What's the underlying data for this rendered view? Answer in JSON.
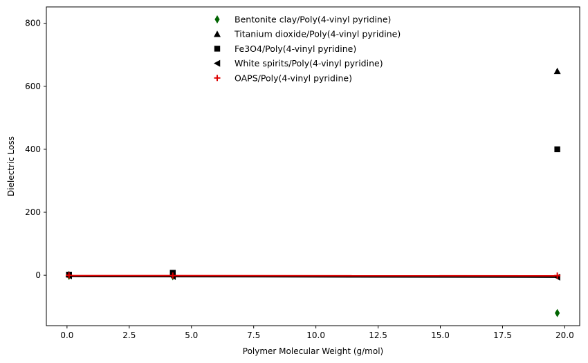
{
  "chart_data": {
    "type": "scatter",
    "title": "",
    "xlabel": "Polymer Molecular Weight (g/mol)",
    "ylabel": "Dielectric Loss",
    "xlim": [
      -0.83,
      20.6
    ],
    "ylim": [
      -160,
      852
    ],
    "x_ticks": [
      0.0,
      2.5,
      5.0,
      7.5,
      10.0,
      12.5,
      15.0,
      17.5,
      20.0
    ],
    "x_tick_labels": [
      "0.0",
      "2.5",
      "5.0",
      "7.5",
      "10.0",
      "12.5",
      "15.0",
      "17.5",
      "20.0"
    ],
    "y_ticks": [
      0,
      200,
      400,
      600,
      800
    ],
    "y_tick_labels": [
      "0",
      "200",
      "400",
      "600",
      "800"
    ],
    "grid": false,
    "legend_position": "top-center",
    "series": [
      {
        "name": "Bentonite clay/Poly(4-vinyl pyridine)",
        "marker": "diamond",
        "color": "#006400",
        "x": [
          0.08,
          4.25,
          19.7
        ],
        "y": [
          -2,
          -3,
          -120
        ]
      },
      {
        "name": "Titanium dioxide/Poly(4-vinyl pyridine)",
        "marker": "triangle-up",
        "color": "#000000",
        "x": [
          0.08,
          4.25,
          19.7
        ],
        "y": [
          3,
          5,
          648
        ]
      },
      {
        "name": "Fe3O4/Poly(4-vinyl pyridine)",
        "marker": "square",
        "color": "#000000",
        "x": [
          0.08,
          4.25,
          19.7
        ],
        "y": [
          2,
          8,
          400
        ]
      },
      {
        "name": "White spirits/Poly(4-vinyl pyridine)",
        "marker": "triangle-left",
        "color": "#000000",
        "x": [
          0.08,
          4.25,
          19.7
        ],
        "y": [
          -2,
          -4,
          -6
        ]
      },
      {
        "name": "OAPS/Poly(4-vinyl pyridine)",
        "marker": "plus",
        "color": "#dd0000",
        "x": [
          0.08,
          4.25,
          19.7
        ],
        "y": [
          0,
          -1,
          -1
        ]
      }
    ],
    "lines": [
      {
        "color": "#000000",
        "x": [
          0.08,
          19.7
        ],
        "y": [
          -4,
          -6
        ]
      },
      {
        "color": "#dd0000",
        "x": [
          0.08,
          19.7
        ],
        "y": [
          -1,
          -2
        ]
      }
    ]
  }
}
